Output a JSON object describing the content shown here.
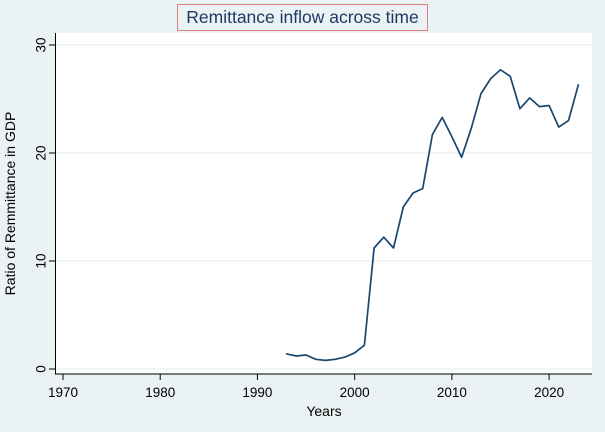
{
  "style": {
    "page_background": "#eaf2f3",
    "plot_background": "#ffffff",
    "gridline_color": "#e2edee",
    "axis_color": "#000000",
    "line_color": "#1a476f",
    "title_color": "#203864",
    "title_border_color": "#d98080"
  },
  "chart_data": {
    "type": "line",
    "title": "Remittance inflow across time",
    "xlabel": "Years",
    "ylabel": "Ratio of Remmittance in GDP",
    "xticks": [
      1970,
      1980,
      1990,
      2000,
      2010,
      2020
    ],
    "yticks": [
      0,
      10,
      20,
      30
    ],
    "xlim": [
      1969.3,
      2024.5
    ],
    "ylim": [
      -0.5,
      31.1
    ],
    "grid": "horizontal gridlines at y ticks",
    "legend": "none",
    "ytick_label_angle": 90,
    "series": [
      {
        "name": "Ratio of Remmittance in GDP",
        "x": [
          1993,
          1994,
          1995,
          1996,
          1997,
          1998,
          1999,
          2000,
          2001,
          2002,
          2003,
          2004,
          2005,
          2006,
          2007,
          2008,
          2009,
          2010,
          2011,
          2012,
          2013,
          2014,
          2015,
          2016,
          2017,
          2018,
          2019,
          2020,
          2021,
          2022,
          2023
        ],
        "y": [
          1.4,
          1.2,
          1.3,
          0.9,
          0.8,
          0.9,
          1.1,
          1.5,
          2.2,
          11.2,
          12.2,
          11.2,
          15.0,
          16.3,
          16.7,
          21.7,
          23.3,
          21.5,
          19.6,
          22.3,
          25.5,
          26.9,
          27.7,
          27.1,
          24.1,
          25.1,
          24.3,
          24.4,
          22.4,
          23.0,
          26.3
        ]
      }
    ]
  }
}
